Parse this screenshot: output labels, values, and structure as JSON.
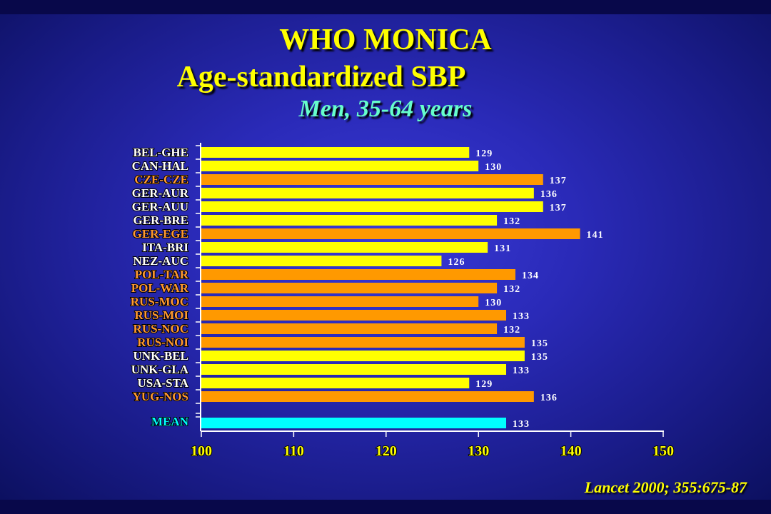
{
  "titles": {
    "line1": "WHO MONICA",
    "line2": "Age-standardized SBP",
    "line3": "Men, 35-64 years"
  },
  "source": "Lancet 2000; 355:675-87",
  "colors": {
    "bar_default": "#ffff00",
    "bar_highlight": "#ff9900",
    "bar_mean": "#00ffff",
    "label_default": "#ffffff",
    "label_highlight": "#ff9933",
    "label_mean": "#00ffff"
  },
  "chart_data": {
    "type": "bar",
    "orientation": "horizontal",
    "categories": [
      "BEL-GHE",
      "CAN-HAL",
      "CZE-CZE",
      "GER-AUR",
      "GER-AUU",
      "GER-BRE",
      "GER-EGE",
      "ITA-BRI",
      "NEZ-AUC",
      "POL-TAR",
      "POL-WAR",
      "RUS-MOC",
      "RUS-MOI",
      "RUS-NOC",
      "RUS-NOI",
      "UNK-BEL",
      "UNK-GLA",
      "USA-STA",
      "YUG-NOS"
    ],
    "values": [
      129,
      130,
      137,
      136,
      137,
      132,
      141,
      131,
      126,
      134,
      132,
      130,
      133,
      132,
      135,
      135,
      133,
      129,
      136
    ],
    "highlight": [
      false,
      false,
      true,
      false,
      false,
      false,
      true,
      false,
      false,
      true,
      true,
      true,
      true,
      true,
      true,
      false,
      false,
      false,
      true
    ],
    "value_labels": [
      "129",
      "130",
      "137",
      "136",
      "137",
      "132",
      "141",
      "131",
      "126",
      "134",
      "132",
      "130",
      "133",
      "132",
      "135",
      "135",
      "133",
      "129",
      "136"
    ],
    "mean": {
      "label": "MEAN",
      "value": 133,
      "value_label": "133"
    },
    "xlim": [
      100,
      150
    ],
    "xticks": [
      100,
      110,
      120,
      130,
      140,
      150
    ],
    "xtick_labels": [
      "100",
      "110",
      "120",
      "130",
      "140",
      "150"
    ],
    "grid": false,
    "legend": "none"
  }
}
